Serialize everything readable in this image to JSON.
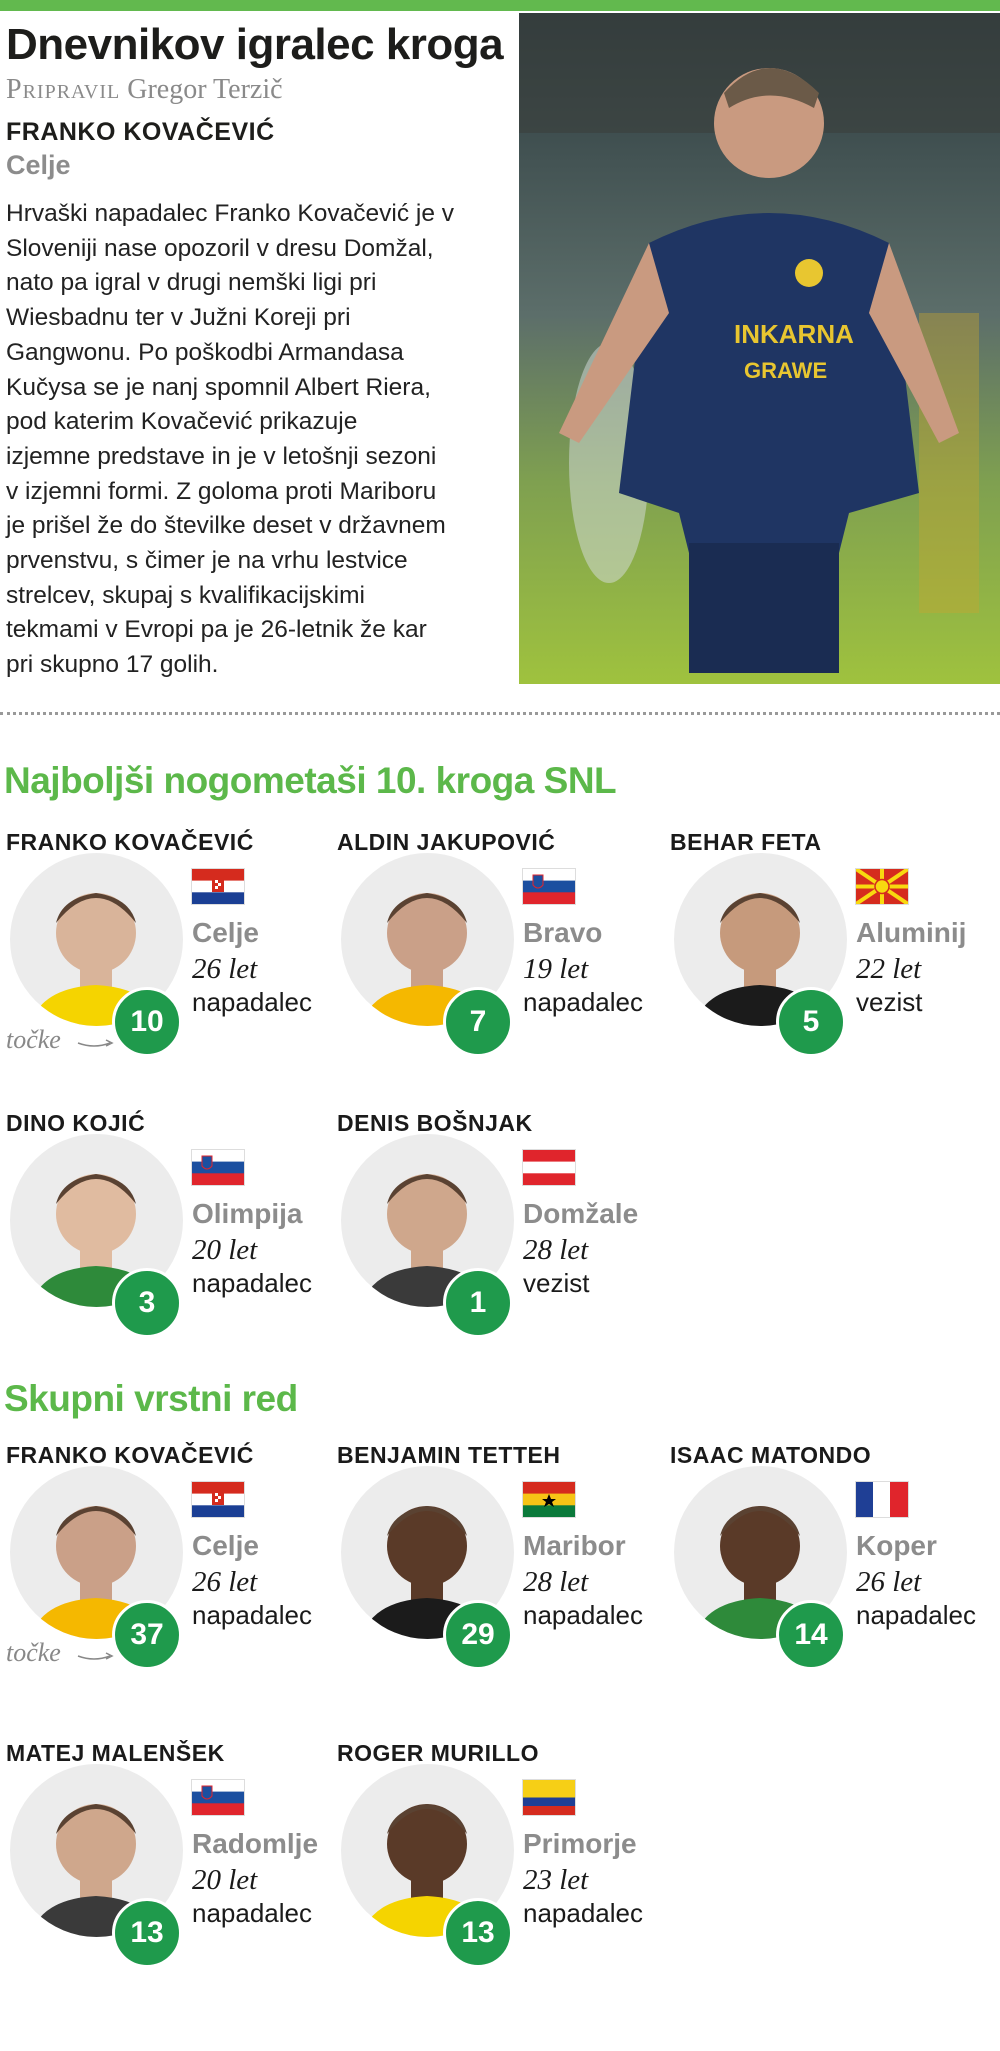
{
  "header": {
    "title": "Dnevnikov igralec kroga",
    "byline_label": "Pripravil",
    "byline_author": "Gregor Terzič",
    "player_name": "FRANKO KOVAČEVIĆ",
    "player_team": "Celje",
    "body_lines": [
      "Hrvaški napadalec Franko Kovačević je v",
      "Sloveniji nase opozoril v dresu Domžal,",
      "nato pa igral v drugi nemški ligi pri",
      "Wiesbadnu ter v Južni Koreji pri",
      "Gangwonu. Po poškodbi Armandasa",
      "Kučysa se je nanj spomnil Albert Riera,",
      "pod katerim Kovačević prikazuje",
      "izjemne predstave in je v letošnji sezoni",
      "v izjemni formi. Z goloma proti Mariboru",
      "je prišel že do številke deset v državnem",
      "prvenstvu, s čimer je na vrhu lestvice",
      "strelcev, skupaj s kvalifikacijskimi",
      "tekmami v Evropi pa je 26-letnik že kar",
      "pri skupno 17 golih."
    ]
  },
  "points_label": "točke",
  "colors": {
    "accent": "#5cb84a",
    "badge": "#1f9a4c"
  },
  "sections": [
    {
      "title": "Najboljši nogometaši 10. kroga SNL",
      "players": [
        {
          "name": "FRANKO KOVAČEVIĆ",
          "flag": "croatia",
          "team": "Celje",
          "age": "26 let",
          "position": "napadalec",
          "points": "10"
        },
        {
          "name": "ALDIN JAKUPOVIĆ",
          "flag": "slovenia",
          "team": "Bravo",
          "age": "19 let",
          "position": "napadalec",
          "points": "7"
        },
        {
          "name": "BEHAR FETA",
          "flag": "north-macedonia",
          "team": "Aluminij",
          "age": "22 let",
          "position": "vezist",
          "points": "5"
        },
        {
          "name": "DINO KOJIĆ",
          "flag": "slovenia",
          "team": "Olimpija",
          "age": "20 let",
          "position": "napadalec",
          "points": "3"
        },
        {
          "name": "DENIS BOŠNJAK",
          "flag": "austria",
          "team": "Domžale",
          "age": "28 let",
          "position": "vezist",
          "points": "1"
        }
      ]
    },
    {
      "title": "Skupni vrstni red",
      "players": [
        {
          "name": "FRANKO KOVAČEVIĆ",
          "flag": "croatia",
          "team": "Celje",
          "age": "26 let",
          "position": "napadalec",
          "points": "37"
        },
        {
          "name": "BENJAMIN TETTEH",
          "flag": "ghana",
          "team": "Maribor",
          "age": "28 let",
          "position": "napadalec",
          "points": "29"
        },
        {
          "name": "ISAAC MATONDO",
          "flag": "france",
          "team": "Koper",
          "age": "26 let",
          "position": "napadalec",
          "points": "14"
        },
        {
          "name": "MATEJ MALENŠEK",
          "flag": "slovenia",
          "team": "Radomlje",
          "age": "20 let",
          "position": "napadalec",
          "points": "13"
        },
        {
          "name": "ROGER MURILLO",
          "flag": "colombia",
          "team": "Primorje",
          "age": "23 let",
          "position": "napadalec",
          "points": "13"
        }
      ]
    }
  ]
}
